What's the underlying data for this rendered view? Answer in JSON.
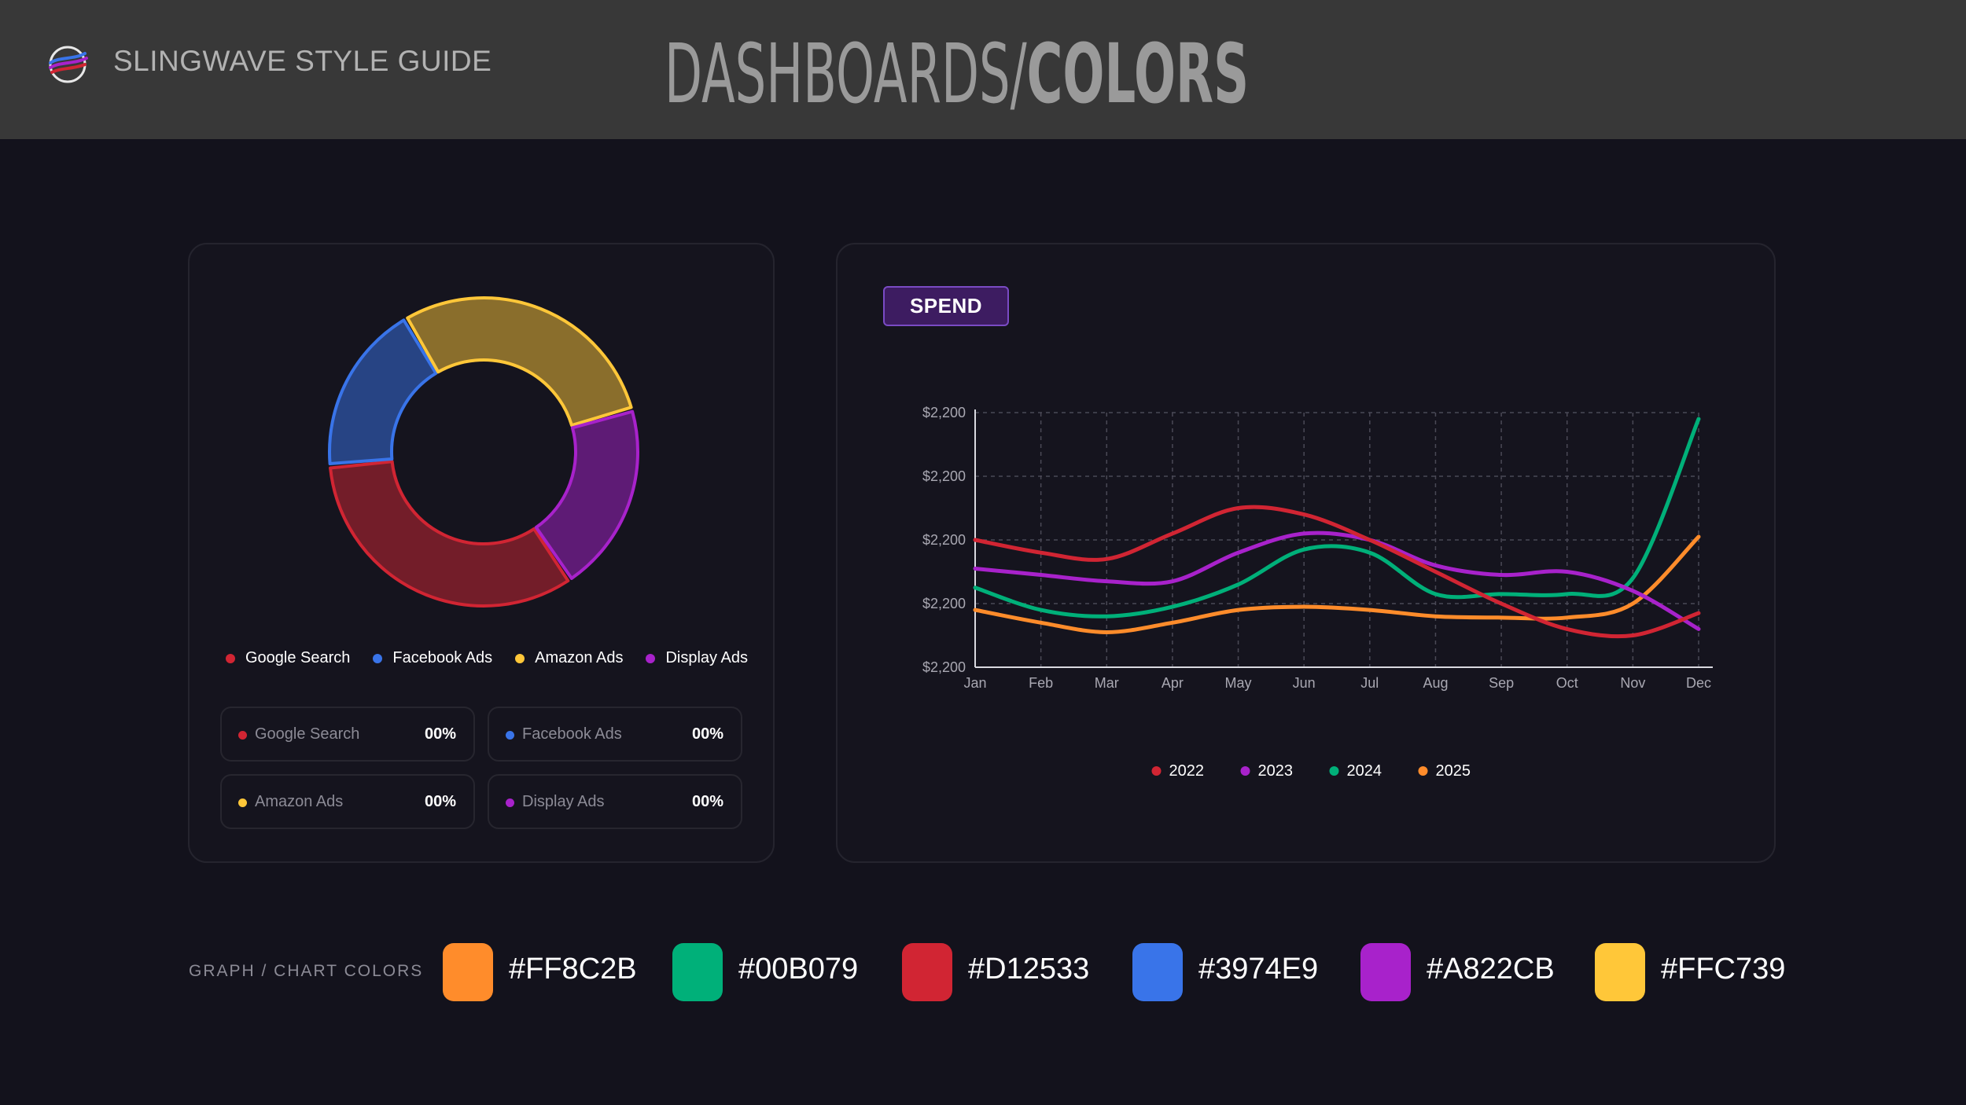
{
  "header": {
    "brand": "SLINGWAVE STYLE GUIDE",
    "title_light": "DASHBOARDS/",
    "title_bold": "COLORS"
  },
  "colors": {
    "orange": "#FF8C2B",
    "green": "#00B079",
    "red": "#D12533",
    "blue": "#3974E9",
    "purple": "#A822CB",
    "yellow": "#FFC739"
  },
  "donut": {
    "legend": [
      {
        "label": "Google Search",
        "color": "#D12533"
      },
      {
        "label": "Facebook Ads",
        "color": "#3974E9"
      },
      {
        "label": "Amazon Ads",
        "color": "#FFC739"
      },
      {
        "label": "Display Ads",
        "color": "#A822CB"
      }
    ],
    "stats": [
      {
        "label": "Google Search",
        "value": "00%",
        "color": "#D12533"
      },
      {
        "label": "Facebook Ads",
        "value": "00%",
        "color": "#3974E9"
      },
      {
        "label": "Amazon Ads",
        "value": "00%",
        "color": "#FFC739"
      },
      {
        "label": "Display Ads",
        "value": "00%",
        "color": "#A822CB"
      }
    ]
  },
  "spend": {
    "badge": "SPEND"
  },
  "chart_data": [
    {
      "type": "pie",
      "categories": [
        "Google Search",
        "Facebook Ads",
        "Amazon Ads",
        "Display Ads"
      ],
      "values": [
        33,
        18,
        29,
        20
      ],
      "colors": [
        "#D12533",
        "#3974E9",
        "#FFC739",
        "#A822CB"
      ],
      "donut": true,
      "legend_placement": "bottom"
    },
    {
      "type": "line",
      "x": [
        "Jan",
        "Feb",
        "Mar",
        "Apr",
        "May",
        "Jun",
        "Jul",
        "Aug",
        "Sep",
        "Oct",
        "Nov",
        "Dec"
      ],
      "y_tick_labels": [
        "$2,200",
        "$2,200",
        "$2,200",
        "$2,200",
        "$2,200"
      ],
      "ylim": [
        0,
        4
      ],
      "grid": true,
      "legend_placement": "bottom",
      "series": [
        {
          "name": "2022",
          "color": "#D12533",
          "values": [
            2.0,
            1.8,
            1.7,
            2.1,
            2.5,
            2.4,
            2.0,
            1.5,
            1.0,
            0.6,
            0.5,
            0.85
          ]
        },
        {
          "name": "2023",
          "color": "#A822CB",
          "values": [
            1.55,
            1.45,
            1.35,
            1.35,
            1.8,
            2.1,
            2.0,
            1.6,
            1.45,
            1.5,
            1.2,
            0.6
          ]
        },
        {
          "name": "2024",
          "color": "#00B079",
          "values": [
            1.25,
            0.9,
            0.8,
            0.95,
            1.3,
            1.85,
            1.8,
            1.15,
            1.15,
            1.15,
            1.4,
            3.9
          ]
        },
        {
          "name": "2025",
          "color": "#FF8C2B",
          "values": [
            0.9,
            0.7,
            0.55,
            0.7,
            0.9,
            0.95,
            0.9,
            0.8,
            0.78,
            0.78,
            1.0,
            2.05
          ]
        }
      ]
    }
  ],
  "palette": {
    "label": "GRAPH / CHART COLORS",
    "swatches": [
      {
        "hex": "#FF8C2B"
      },
      {
        "hex": "#00B079"
      },
      {
        "hex": "#D12533"
      },
      {
        "hex": "#3974E9"
      },
      {
        "hex": "#A822CB"
      },
      {
        "hex": "#FFC739"
      }
    ]
  }
}
